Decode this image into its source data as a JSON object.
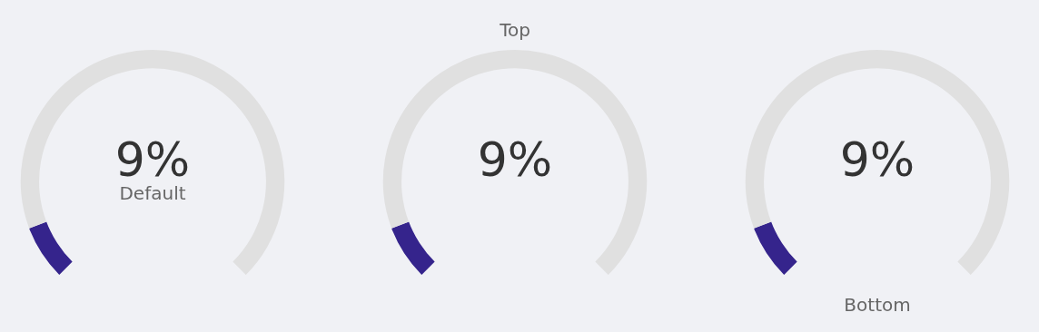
{
  "chart_data": [
    {
      "type": "donut",
      "title": "Default",
      "categories": [
        null,
        null
      ],
      "values": [
        9,
        91
      ],
      "colors": [
        "#35248c",
        "#e0e0e0"
      ],
      "annotations": [
        "9%"
      ],
      "legend": false
    },
    {
      "type": "donut",
      "title": "Top",
      "categories": [
        null,
        null
      ],
      "values": [
        9,
        91
      ],
      "colors": [
        "#35248c",
        "#e0e0e0"
      ],
      "annotations": [
        "9%"
      ],
      "legend": false
    },
    {
      "type": "donut",
      "title": "Bottom",
      "categories": [
        null,
        null
      ],
      "values": [
        9,
        91
      ],
      "colors": [
        "#35248c",
        "#e0e0e0"
      ],
      "annotations": [
        "9%"
      ],
      "legend": false
    }
  ]
}
